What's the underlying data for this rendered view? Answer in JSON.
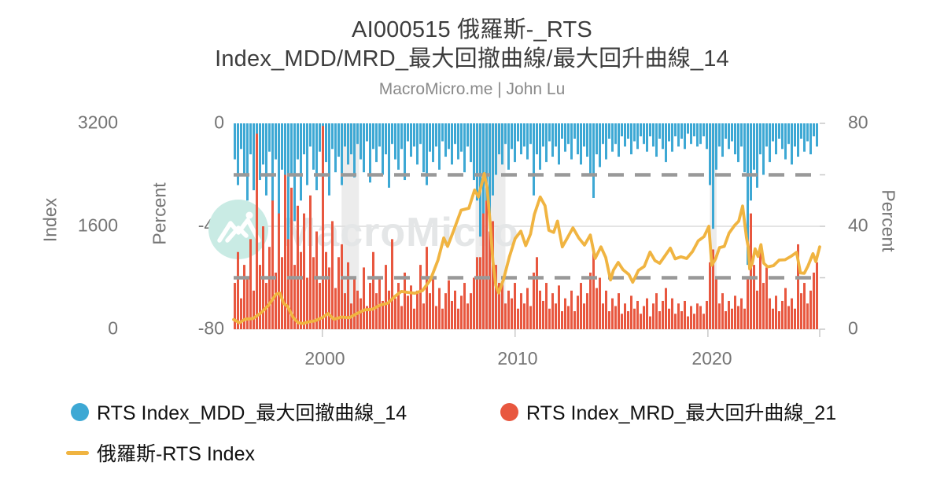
{
  "header": {
    "title_lines": [
      "AI000515 俄羅斯-_RTS",
      "Index_MDD/MRD_最大回撤曲線/最大回升曲線_14"
    ],
    "subtitle": "MacroMicro.me | John Lu"
  },
  "watermark": {
    "text": "MacroMicro",
    "circle_color": "#c9ebe4",
    "text_color": "#e4e6e7"
  },
  "axes": {
    "left_index": {
      "title": "Index",
      "ticks": [
        "3200",
        "1600",
        "0"
      ]
    },
    "left_percent": {
      "title": "Percent",
      "ticks": [
        "0",
        "-40",
        "-80"
      ]
    },
    "right_percent": {
      "title": "Percent",
      "ticks": [
        "80",
        "40",
        "0"
      ]
    },
    "x": {
      "ticks": [
        "2000",
        "2010",
        "2020"
      ]
    }
  },
  "legend": [
    {
      "marker": "circle",
      "color": "#3da8d4",
      "label": "RTS Index_MDD_最大回撤曲線_14"
    },
    {
      "marker": "circle",
      "color": "#e8573f",
      "label": "RTS Index_MRD_最大回升曲線_21"
    },
    {
      "marker": "line",
      "color": "#f0b441",
      "label": "俄羅斯-RTS Index"
    }
  ],
  "colors": {
    "mdd_blue": "#3da8d4",
    "mrd_red": "#e8573f",
    "index_yellow": "#f0b441",
    "dashed_gray": "#999999",
    "grid_gray": "#dcdcdc",
    "band_gray": "#ececec",
    "axis_text": "#757575",
    "tick_mark": "#c9c9c9"
  },
  "chart_data": {
    "type": "mixed",
    "title": "AI000515 俄羅斯-_RTS Index_MDD/MRD_最大回撤曲線/最大回升曲線_14",
    "subtitle": "MacroMicro.me | John Lu",
    "x_range_years": [
      1995.4,
      2025.8
    ],
    "x_tick_years": [
      2000,
      2010,
      2020
    ],
    "axes": {
      "index": {
        "label": "Index",
        "range": [
          0,
          3200
        ],
        "side": "outer-left"
      },
      "percent_left": {
        "label": "Percent",
        "range": [
          -80,
          0
        ],
        "side": "left"
      },
      "percent_right": {
        "label": "Percent",
        "range": [
          0,
          80
        ],
        "side": "right"
      }
    },
    "grid": "single horizontal gridline at mid level (Index 1600 / -40% / 40%)",
    "legend_position": "bottom-left",
    "threshold_lines": [
      {
        "axis": "percent_left",
        "value": -20,
        "style": "dashed"
      },
      {
        "axis": "percent_right",
        "value": 20,
        "style": "dashed"
      }
    ],
    "recession_bands_years": [
      [
        2001.0,
        2001.9
      ],
      [
        2007.95,
        2009.5
      ],
      [
        2020.1,
        2020.45
      ]
    ],
    "series": [
      {
        "name": "RTS Index_MDD_最大回撤曲線_14",
        "type": "bar",
        "axis": "percent_left",
        "direction": "hanging-from-zero",
        "color": "#3da8d4",
        "x_start_year": 1995.4,
        "x_step_years": 0.1634,
        "values": [
          -14,
          -24,
          -10,
          -20,
          -30,
          -12,
          -26,
          -9,
          -22,
          -16,
          -28,
          -11,
          -32,
          -14,
          -43,
          -18,
          -36,
          -45,
          -20,
          -38,
          -14,
          -30,
          -12,
          -24,
          -9,
          -18,
          -26,
          -11,
          -22,
          -15,
          -28,
          -10,
          -19,
          -13,
          -24,
          -9,
          -16,
          -12,
          -21,
          -8,
          -14,
          -19,
          -7,
          -23,
          -10,
          -15,
          -9,
          -20,
          -12,
          -25,
          -8,
          -14,
          -18,
          -10,
          -22,
          -7,
          -13,
          -9,
          -16,
          -8,
          -19,
          -24,
          -11,
          -15,
          -9,
          -18,
          -7,
          -13,
          -10,
          -16,
          -8,
          -14,
          -11,
          -19,
          -9,
          -15,
          -22,
          -30,
          -44,
          -57,
          -48,
          -38,
          -28,
          -20,
          -12,
          -16,
          -8,
          -18,
          -10,
          -15,
          -7,
          -12,
          -9,
          -14,
          -8,
          -28,
          -12,
          -18,
          -9,
          -15,
          -7,
          -13,
          -9,
          -16,
          -6,
          -11,
          -8,
          -14,
          -6,
          -12,
          -16,
          -9,
          -13,
          -20,
          -29,
          -12,
          -17,
          -8,
          -14,
          -6,
          -11,
          -8,
          -13,
          -5,
          -9,
          -6,
          -12,
          -7,
          -10,
          -5,
          -8,
          -11,
          -5,
          -9,
          -13,
          -6,
          -10,
          -15,
          -7,
          -11,
          -5,
          -9,
          -6,
          -10,
          -4,
          -8,
          -5,
          -9,
          -8,
          -5,
          -10,
          -24,
          -41,
          -18,
          -9,
          -13,
          -6,
          -10,
          -7,
          -12,
          -15,
          -9,
          -19,
          -55,
          -30,
          -18,
          -25,
          -12,
          -20,
          -9,
          -15,
          -7,
          -12,
          -6,
          -10,
          -14,
          -8,
          -16,
          -9,
          -13,
          -6,
          -11,
          -7,
          -12,
          -5,
          -9
        ]
      },
      {
        "name": "RTS Index_MRD_最大回升曲線_21",
        "type": "bar",
        "axis": "percent_right",
        "direction": "rising-from-zero",
        "color": "#e8573f",
        "x_start_year": 1995.4,
        "x_step_years": 0.1634,
        "values": [
          18,
          30,
          12,
          25,
          20,
          35,
          15,
          76,
          25,
          40,
          18,
          32,
          50,
          22,
          45,
          28,
          60,
          35,
          55,
          25,
          48,
          30,
          45,
          20,
          52,
          28,
          38,
          18,
          79,
          30,
          24,
          42,
          16,
          28,
          33,
          14,
          26,
          10,
          20,
          15,
          12,
          24,
          9,
          18,
          30,
          14,
          20,
          11,
          25,
          15,
          35,
          12,
          18,
          9,
          22,
          13,
          17,
          8,
          15,
          25,
          10,
          32,
          14,
          20,
          9,
          16,
          8,
          14,
          19,
          11,
          15,
          8,
          13,
          18,
          10,
          14,
          20,
          28,
          28,
          45,
          50,
          38,
          42,
          25,
          18,
          18,
          10,
          15,
          12,
          18,
          8,
          14,
          10,
          16,
          9,
          22,
          28,
          15,
          11,
          18,
          8,
          14,
          10,
          17,
          7,
          12,
          9,
          15,
          7,
          13,
          18,
          10,
          14,
          22,
          30,
          16,
          20,
          10,
          15,
          7,
          12,
          9,
          14,
          6,
          10,
          7,
          13,
          8,
          11,
          6,
          9,
          12,
          5,
          10,
          14,
          7,
          11,
          16,
          8,
          12,
          6,
          10,
          7,
          11,
          5,
          9,
          6,
          10,
          9,
          6,
          11,
          26,
          31,
          20,
          10,
          14,
          7,
          11,
          8,
          13,
          9,
          12,
          8,
          20,
          45,
          25,
          15,
          30,
          18,
          24,
          12,
          8,
          13,
          7,
          11,
          16,
          9,
          12,
          8,
          33,
          14,
          18,
          10,
          15,
          22,
          26
        ]
      },
      {
        "name": "俄羅斯-RTS Index",
        "type": "line",
        "axis": "index",
        "color": "#f0b441",
        "points": [
          [
            1995.4,
            150
          ],
          [
            1995.7,
            120
          ],
          [
            1996.0,
            140
          ],
          [
            1996.4,
            190
          ],
          [
            1996.8,
            230
          ],
          [
            1997.2,
            380
          ],
          [
            1997.6,
            520
          ],
          [
            1997.8,
            560
          ],
          [
            1998.0,
            420
          ],
          [
            1998.2,
            340
          ],
          [
            1998.5,
            200
          ],
          [
            1998.75,
            80
          ],
          [
            1999.0,
            100
          ],
          [
            1999.3,
            90
          ],
          [
            1999.6,
            130
          ],
          [
            2000.0,
            200
          ],
          [
            2000.3,
            230
          ],
          [
            2000.6,
            180
          ],
          [
            2001.0,
            170
          ],
          [
            2001.4,
            190
          ],
          [
            2001.8,
            220
          ],
          [
            2002.2,
            300
          ],
          [
            2002.6,
            330
          ],
          [
            2003.0,
            360
          ],
          [
            2003.4,
            430
          ],
          [
            2003.8,
            500
          ],
          [
            2004.1,
            600
          ],
          [
            2004.4,
            550
          ],
          [
            2004.8,
            560
          ],
          [
            2005.2,
            620
          ],
          [
            2005.6,
            750
          ],
          [
            2006.0,
            1100
          ],
          [
            2006.3,
            1400
          ],
          [
            2006.5,
            1300
          ],
          [
            2006.8,
            1500
          ],
          [
            2007.2,
            1850
          ],
          [
            2007.6,
            1900
          ],
          [
            2007.9,
            2150
          ],
          [
            2008.1,
            2080
          ],
          [
            2008.4,
            2400
          ],
          [
            2008.55,
            2200
          ],
          [
            2008.7,
            1650
          ],
          [
            2008.85,
            1050
          ],
          [
            2009.0,
            700
          ],
          [
            2009.15,
            550
          ],
          [
            2009.4,
            800
          ],
          [
            2009.7,
            1100
          ],
          [
            2010.0,
            1420
          ],
          [
            2010.3,
            1500
          ],
          [
            2010.55,
            1300
          ],
          [
            2010.8,
            1500
          ],
          [
            2011.0,
            1770
          ],
          [
            2011.3,
            2080
          ],
          [
            2011.55,
            1900
          ],
          [
            2011.75,
            1550
          ],
          [
            2012.0,
            1480
          ],
          [
            2012.2,
            1680
          ],
          [
            2012.45,
            1300
          ],
          [
            2012.7,
            1400
          ],
          [
            2013.0,
            1600
          ],
          [
            2013.3,
            1400
          ],
          [
            2013.6,
            1320
          ],
          [
            2013.9,
            1440
          ],
          [
            2014.15,
            1100
          ],
          [
            2014.45,
            1300
          ],
          [
            2014.7,
            1100
          ],
          [
            2014.95,
            790
          ],
          [
            2015.1,
            900
          ],
          [
            2015.35,
            1050
          ],
          [
            2015.6,
            900
          ],
          [
            2015.9,
            850
          ],
          [
            2016.1,
            750
          ],
          [
            2016.4,
            900
          ],
          [
            2016.7,
            1000
          ],
          [
            2017.0,
            1180
          ],
          [
            2017.25,
            1080
          ],
          [
            2017.5,
            1000
          ],
          [
            2017.75,
            1130
          ],
          [
            2018.05,
            1280
          ],
          [
            2018.3,
            1080
          ],
          [
            2018.6,
            1150
          ],
          [
            2018.9,
            1080
          ],
          [
            2019.2,
            1220
          ],
          [
            2019.5,
            1350
          ],
          [
            2019.8,
            1440
          ],
          [
            2020.05,
            1620
          ],
          [
            2020.2,
            980
          ],
          [
            2020.4,
            1120
          ],
          [
            2020.6,
            1250
          ],
          [
            2020.85,
            1300
          ],
          [
            2021.1,
            1470
          ],
          [
            2021.4,
            1620
          ],
          [
            2021.6,
            1700
          ],
          [
            2021.8,
            1900
          ],
          [
            2022.0,
            1450
          ],
          [
            2022.1,
            1250
          ],
          [
            2022.17,
            950
          ],
          [
            2022.3,
            1000
          ],
          [
            2022.45,
            1250
          ],
          [
            2022.6,
            1150
          ],
          [
            2022.75,
            1300
          ],
          [
            2022.9,
            1050
          ],
          [
            2023.1,
            950
          ],
          [
            2023.4,
            1000
          ],
          [
            2023.7,
            1050
          ],
          [
            2024.0,
            1080
          ],
          [
            2024.3,
            1150
          ],
          [
            2024.6,
            1180
          ],
          [
            2024.8,
            900
          ],
          [
            2025.0,
            850
          ],
          [
            2025.2,
            1000
          ],
          [
            2025.45,
            1150
          ],
          [
            2025.6,
            1050
          ],
          [
            2025.8,
            1280
          ]
        ]
      }
    ]
  }
}
